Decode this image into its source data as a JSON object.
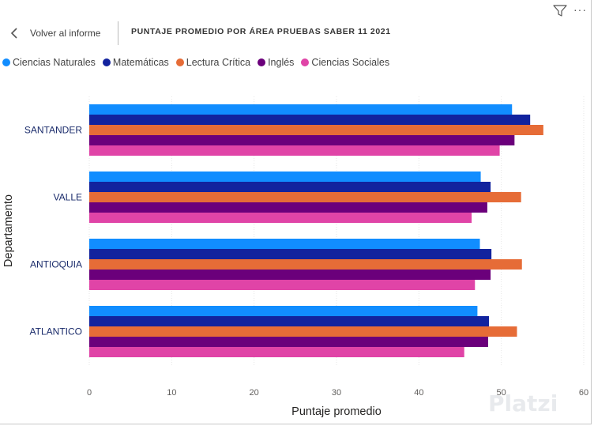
{
  "toolbar": {
    "filter_icon": "filter-icon",
    "more_icon": "more-options-icon",
    "more_glyph": "···"
  },
  "header": {
    "back_label": "Volver al informe",
    "back_icon": "chevron-left-icon",
    "title": "PUNTAJE PROMEDIO POR ÁREA PRUEBAS SABER 11 2021"
  },
  "watermark": {
    "text": "Platzi"
  },
  "chart_data": {
    "type": "bar",
    "orientation": "horizontal",
    "categories": [
      "SANTANDER",
      "VALLE",
      "ANTIOQUIA",
      "ATLANTICO"
    ],
    "series": [
      {
        "name": "Ciencias Naturales",
        "color": "#118dff",
        "values": [
          51.3,
          47.5,
          47.4,
          47.1
        ]
      },
      {
        "name": "Matemáticas",
        "color": "#12239e",
        "values": [
          53.5,
          48.7,
          48.8,
          48.5
        ]
      },
      {
        "name": "Lectura Crítica",
        "color": "#e66c37",
        "values": [
          55.1,
          52.4,
          52.5,
          51.9
        ]
      },
      {
        "name": "Inglés",
        "color": "#6b007b",
        "values": [
          51.6,
          48.3,
          48.7,
          48.4
        ]
      },
      {
        "name": "Ciencias Sociales",
        "color": "#e044a7",
        "values": [
          49.8,
          46.4,
          46.8,
          45.5
        ]
      }
    ],
    "xlabel": "Puntaje promedio",
    "ylabel": "Departamento",
    "xlim": [
      0,
      60
    ],
    "xticks": [
      "0",
      "10",
      "20",
      "30",
      "40",
      "50",
      "60"
    ],
    "grid": true,
    "legend": "top-left"
  }
}
